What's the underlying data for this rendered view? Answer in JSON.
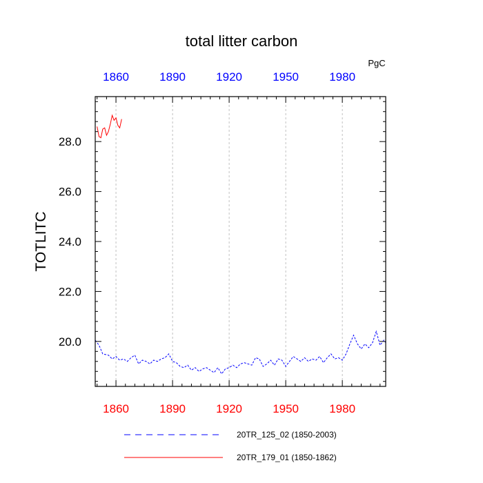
{
  "chart_data": {
    "type": "line",
    "title": "total litter carbon",
    "units": "PgC",
    "ylabel": "TOTLITC",
    "xlabel": "",
    "xlim": [
      1849,
      2003
    ],
    "ylim": [
      18.2,
      29.8
    ],
    "grid": "vertical dashed",
    "legend_position": "bottom",
    "bottom_axis": {
      "color": "#ff0000",
      "ticks": [
        1860,
        1890,
        1920,
        1950,
        1980
      ],
      "labels": [
        "1860",
        "1890",
        "1920",
        "1950",
        "1980"
      ]
    },
    "top_axis": {
      "color": "#0000ff",
      "ticks": [
        1860,
        1890,
        1920,
        1950,
        1980
      ],
      "labels": [
        "1860",
        "1890",
        "1920",
        "1950",
        "1980"
      ]
    },
    "y_axis": {
      "ticks": [
        20,
        22,
        24,
        26,
        28
      ],
      "labels": [
        "20.0",
        "22.0",
        "24.0",
        "26.0",
        "28.0"
      ]
    },
    "series": [
      {
        "name": "20TR_125_02 (1850-2003)",
        "color": "#0000ff",
        "dash": "dashed",
        "x": [
          1849,
          1851,
          1853,
          1856,
          1858,
          1860,
          1862,
          1864,
          1866,
          1868,
          1870,
          1872,
          1874,
          1876,
          1878,
          1880,
          1882,
          1884,
          1886,
          1888,
          1890,
          1892,
          1894,
          1896,
          1898,
          1900,
          1902,
          1904,
          1906,
          1908,
          1910,
          1912,
          1914,
          1916,
          1918,
          1920,
          1922,
          1924,
          1926,
          1928,
          1930,
          1932,
          1934,
          1936,
          1938,
          1940,
          1942,
          1944,
          1946,
          1948,
          1950,
          1952,
          1954,
          1956,
          1958,
          1960,
          1962,
          1964,
          1966,
          1968,
          1970,
          1972,
          1974,
          1976,
          1978,
          1980,
          1982,
          1984,
          1986,
          1988,
          1990,
          1992,
          1994,
          1996,
          1998,
          2000,
          2002,
          2003
        ],
        "y": [
          20.05,
          19.85,
          19.5,
          19.45,
          19.3,
          19.4,
          19.25,
          19.3,
          19.2,
          19.35,
          19.45,
          19.1,
          19.25,
          19.2,
          19.1,
          19.25,
          19.2,
          19.3,
          19.35,
          19.5,
          19.2,
          19.15,
          19.0,
          18.95,
          19.05,
          18.85,
          18.95,
          18.8,
          18.9,
          18.95,
          18.85,
          18.75,
          18.95,
          18.7,
          18.9,
          18.95,
          19.05,
          18.95,
          19.1,
          19.15,
          19.1,
          19.05,
          19.35,
          19.3,
          19.0,
          19.1,
          19.25,
          19.05,
          19.3,
          19.25,
          19.0,
          19.2,
          19.4,
          19.3,
          19.2,
          19.35,
          19.2,
          19.3,
          19.25,
          19.4,
          19.15,
          19.35,
          19.5,
          19.3,
          19.35,
          19.25,
          19.5,
          19.9,
          20.25,
          19.9,
          19.7,
          19.9,
          19.75,
          19.95,
          20.4,
          19.85,
          20.05,
          19.95
        ]
      },
      {
        "name": "20TR_179_01 (1850-1862)",
        "color": "#ff0000",
        "dash": "solid",
        "x": [
          1850,
          1851,
          1852,
          1853,
          1854,
          1855,
          1856,
          1857,
          1858,
          1859,
          1860,
          1861,
          1862,
          1863
        ],
        "y": [
          28.6,
          28.2,
          28.15,
          28.5,
          28.55,
          28.25,
          28.4,
          28.7,
          29.05,
          28.85,
          28.95,
          28.65,
          28.55,
          28.9
        ]
      }
    ]
  }
}
